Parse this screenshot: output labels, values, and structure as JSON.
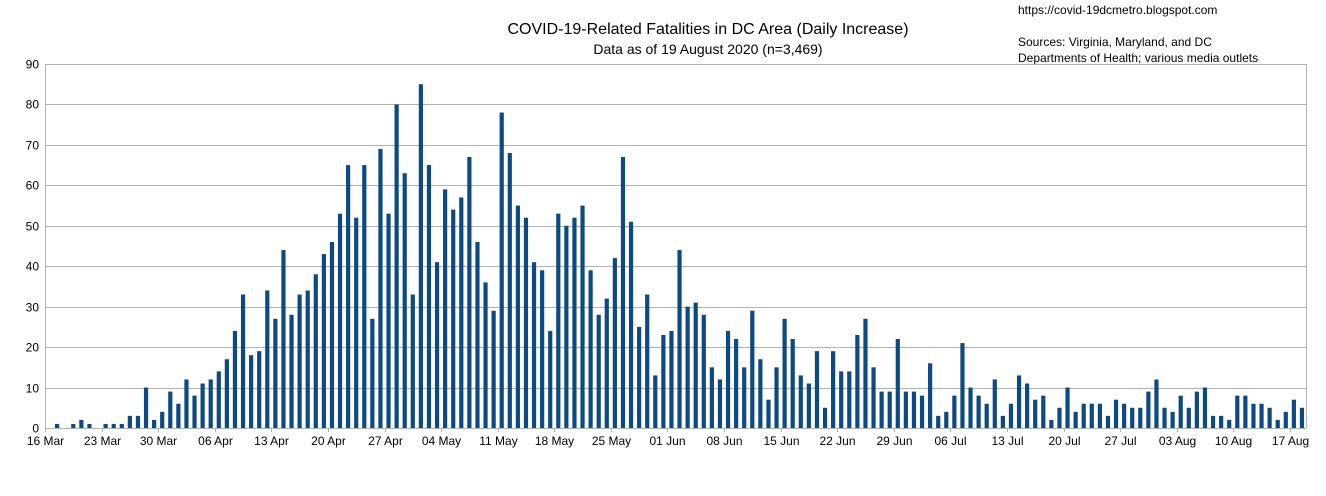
{
  "chart_data": {
    "type": "bar",
    "title": "COVID-19-Related Fatalities in DC Area (Daily Increase)",
    "subtitle": "Data as of 19 August 2020 (n=3,469)",
    "source_url": "https://covid-19dcmetro.blogspot.com",
    "sources_line1": "Sources: Virginia, Maryland, and DC",
    "sources_line2": "Departments of Health; various media outlets",
    "xlabel": "",
    "ylabel": "",
    "ylim": [
      0,
      90
    ],
    "yticks": [
      0,
      10,
      20,
      30,
      40,
      50,
      60,
      70,
      80,
      90
    ],
    "grid": true,
    "bar_color": "#0d4a84",
    "x_start": "16 Mar",
    "x_end": "19 Aug",
    "xtick_labels": [
      "16 Mar",
      "23 Mar",
      "30 Mar",
      "06 Apr",
      "13 Apr",
      "20 Apr",
      "27 Apr",
      "04 May",
      "11 May",
      "18 May",
      "25 May",
      "01 Jun",
      "08 Jun",
      "15 Jun",
      "22 Jun",
      "29 Jun",
      "06 Jul",
      "13 Jul",
      "20 Jul",
      "27 Jul",
      "03 Aug",
      "10 Aug",
      "17 Aug"
    ],
    "series": [
      {
        "values": [
          0,
          1,
          0,
          1,
          2,
          1,
          0,
          1,
          1,
          1,
          3,
          3,
          10,
          2,
          4,
          9,
          6,
          12,
          8,
          11,
          12,
          14,
          17,
          24,
          33,
          18,
          19,
          34,
          27,
          44,
          28,
          33,
          34,
          38,
          43,
          46,
          53,
          65,
          52,
          65,
          27,
          69,
          53,
          80,
          63,
          33,
          85,
          65,
          41,
          59,
          54,
          57,
          67,
          46,
          36,
          29,
          78,
          68,
          55,
          52,
          41,
          39,
          24,
          53,
          50,
          52,
          55,
          39,
          28,
          32,
          42,
          67,
          51,
          25,
          33,
          13,
          23,
          24,
          44,
          30,
          31,
          28,
          15,
          12,
          24,
          22,
          15,
          29,
          17,
          7,
          15,
          27,
          22,
          13,
          11,
          19,
          5,
          19,
          14,
          14,
          23,
          27,
          15,
          9,
          9,
          22,
          9,
          9,
          8,
          16,
          3,
          4,
          8,
          21,
          10,
          8,
          6,
          12,
          3,
          6,
          13,
          11,
          7,
          8,
          2,
          5,
          10,
          4,
          6,
          6,
          6,
          3,
          7,
          6,
          5,
          5,
          9,
          12,
          5,
          4,
          8,
          5,
          9,
          10,
          3,
          3,
          2,
          8,
          8,
          6,
          6,
          5,
          2,
          4,
          7,
          5
        ]
      }
    ]
  }
}
